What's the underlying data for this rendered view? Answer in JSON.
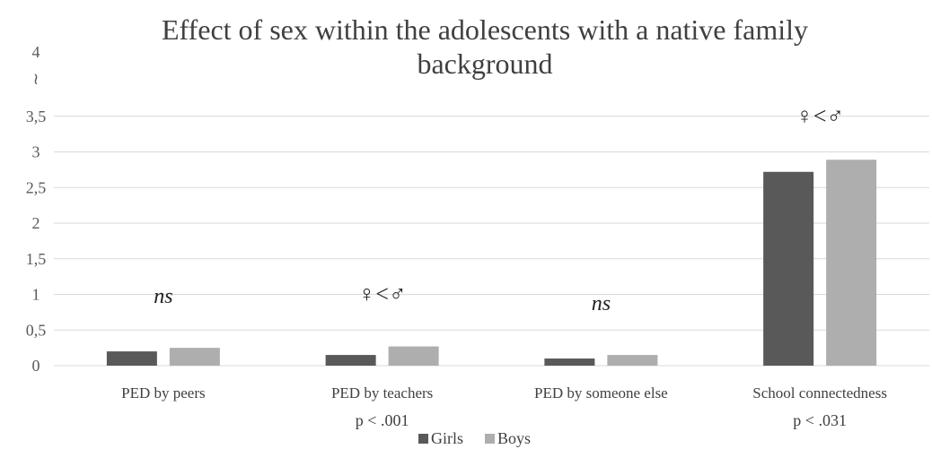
{
  "chart_data": {
    "type": "bar",
    "title": "Effect of sex within the adolescents with a native family background",
    "title_lines": [
      "Effect of sex within the adolescents with a native family",
      "background"
    ],
    "categories": [
      "PED by peers",
      "PED by teachers",
      "PED by someone else",
      "School connectedness"
    ],
    "series": [
      {
        "name": "Girls",
        "values": [
          0.2,
          0.15,
          0.1,
          2.72
        ],
        "color": "#595959"
      },
      {
        "name": "Boys",
        "values": [
          0.25,
          0.27,
          0.15,
          2.89
        ],
        "color": "#aeaeae"
      }
    ],
    "y_ticks": [
      "0",
      "0,5",
      "1",
      "1,5",
      "2",
      "2,5",
      "3",
      "3,5"
    ],
    "y_tick_values": [
      0,
      0.5,
      1,
      1.5,
      2,
      2.5,
      3,
      3.5
    ],
    "y_top_label": "4",
    "y_break_marker": "≀",
    "ylim": [
      0,
      4
    ],
    "grid": true,
    "legend_position": "bottom",
    "annotations": [
      {
        "category": "PED by peers",
        "text": "ns",
        "italic": true
      },
      {
        "category": "PED by teachers",
        "text": "♀<♂",
        "italic": false
      },
      {
        "category": "PED by someone else",
        "text": "ns",
        "italic": true
      },
      {
        "category": "School connectedness",
        "text": "♀<♂",
        "italic": false
      }
    ],
    "p_values": [
      {
        "category": "PED by teachers",
        "text": "p < .001"
      },
      {
        "category": "School connectedness",
        "text": "p < .031"
      }
    ]
  }
}
